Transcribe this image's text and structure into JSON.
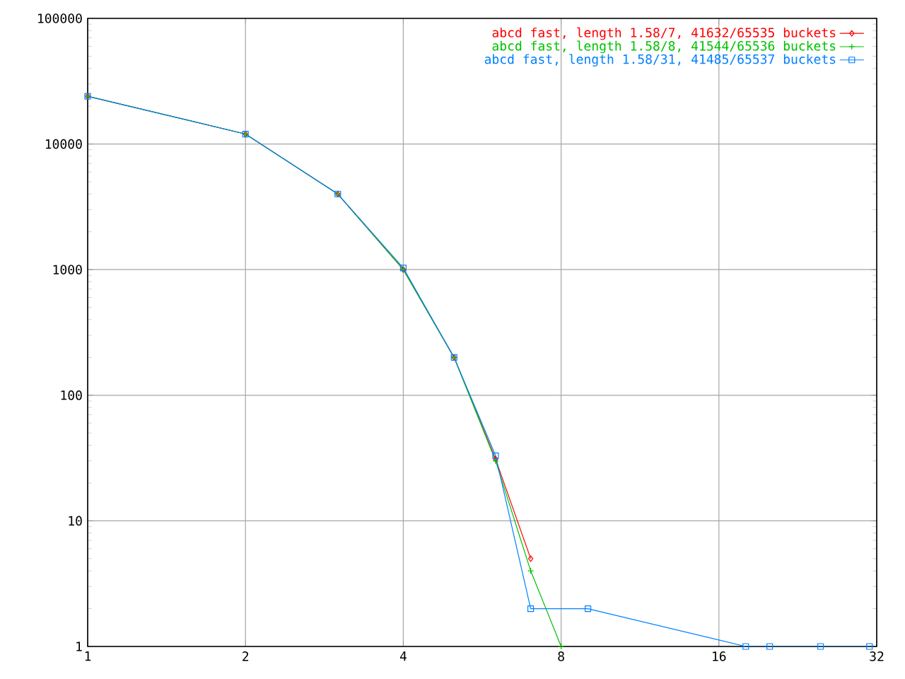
{
  "chart_data": {
    "type": "line",
    "log": "xy",
    "grid": true,
    "legend": "top right",
    "line_style": "solid",
    "xlim": [
      1,
      32
    ],
    "xticks": [
      1,
      2,
      4,
      8,
      16,
      32
    ],
    "ylim": [
      1,
      100000
    ],
    "yticks": [
      1,
      10,
      100,
      1000,
      10000,
      100000
    ],
    "series": [
      {
        "name": "abcd fast, length 1.58/7, 41632/65535 buckets",
        "color": "#ff0000",
        "marker": "diamond",
        "x": [
          1,
          2,
          3,
          4,
          5,
          6,
          7
        ],
        "values": [
          24000,
          12000,
          4000,
          1000,
          200,
          31,
          5
        ]
      },
      {
        "name": "abcd fast, length 1.58/8, 41544/65536 buckets",
        "color": "#00c000",
        "marker": "cross",
        "x": [
          1,
          2,
          3,
          4,
          5,
          6,
          7,
          8
        ],
        "values": [
          24000,
          12000,
          4000,
          1000,
          200,
          30,
          4,
          1
        ]
      },
      {
        "name": "abcd fast, length 1.58/31, 41485/65537 buckets",
        "color": "#0080ff",
        "marker": "square",
        "x": [
          1,
          2,
          3,
          4,
          5,
          6,
          7,
          9,
          18,
          20,
          25,
          31
        ],
        "values": [
          24000,
          12000,
          4000,
          1030,
          200,
          33,
          2,
          2,
          1,
          1,
          1,
          1
        ]
      }
    ]
  }
}
